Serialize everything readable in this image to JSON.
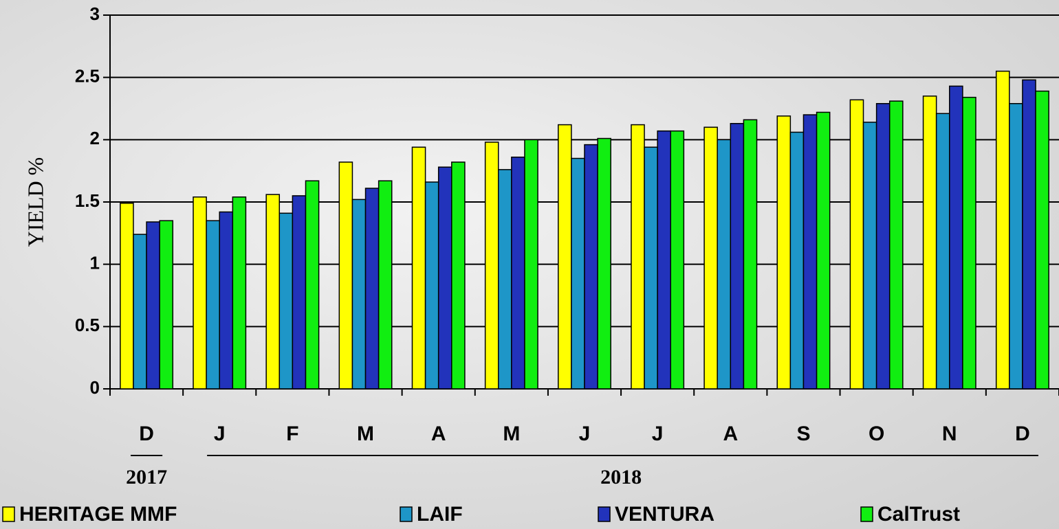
{
  "chart_data": {
    "type": "bar",
    "y_label": "YIELD %",
    "categories": [
      "D",
      "J",
      "F",
      "M",
      "A",
      "M",
      "J",
      "J",
      "A",
      "S",
      "O",
      "N",
      "D"
    ],
    "year_labels": [
      "2017",
      "2018"
    ],
    "series": [
      {
        "name": "HERITAGE MMF",
        "color": "#ffff00",
        "values": [
          1.49,
          1.54,
          1.56,
          1.82,
          1.94,
          1.98,
          2.12,
          2.12,
          2.1,
          2.19,
          2.32,
          2.35,
          2.55
        ]
      },
      {
        "name": "LAIF",
        "color": "#1e96c8",
        "values": [
          1.24,
          1.35,
          1.41,
          1.52,
          1.66,
          1.76,
          1.85,
          1.94,
          2.0,
          2.06,
          2.14,
          2.21,
          2.29
        ]
      },
      {
        "name": "VENTURA",
        "color": "#2233bb",
        "values": [
          1.34,
          1.42,
          1.55,
          1.61,
          1.78,
          1.86,
          1.96,
          2.07,
          2.13,
          2.2,
          2.29,
          2.43,
          2.48
        ]
      },
      {
        "name": "CalTrust",
        "color": "#11ee11",
        "values": [
          1.35,
          1.54,
          1.67,
          1.67,
          1.82,
          2.0,
          2.01,
          2.07,
          2.16,
          2.22,
          2.31,
          2.34,
          2.39
        ]
      }
    ],
    "ylim": [
      0,
      3
    ],
    "yticks": [
      0,
      0.5,
      1,
      1.5,
      2,
      2.5,
      3
    ],
    "grid": true
  }
}
